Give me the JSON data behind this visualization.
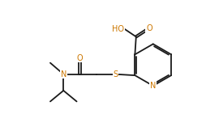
{
  "bg_color": "#ffffff",
  "bond_color": "#1a1a1a",
  "atom_colors": {
    "O": "#cc7700",
    "N": "#cc7700",
    "S": "#cc7700"
  },
  "font_size_atom": 7.0,
  "line_width": 1.3,
  "fig_width": 2.54,
  "fig_height": 1.52,
  "dpi": 100
}
